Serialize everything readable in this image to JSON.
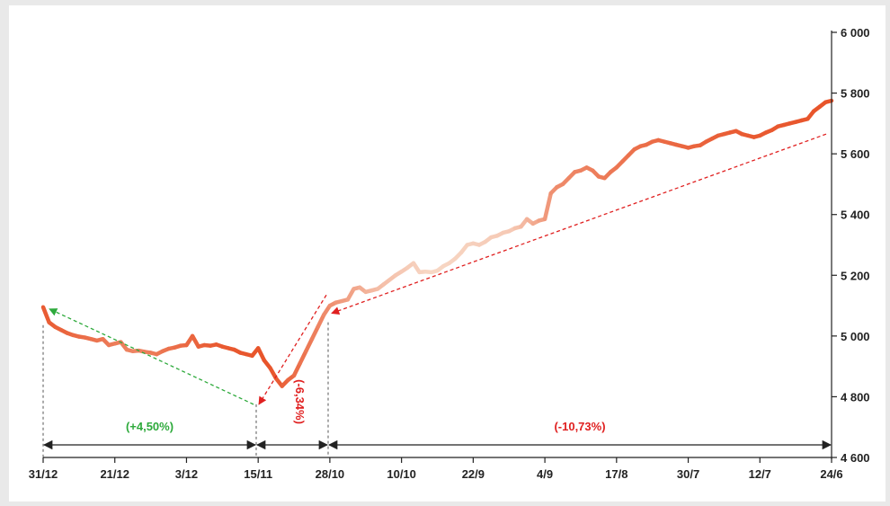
{
  "chart_data": {
    "type": "line",
    "title": "",
    "xlabel": "",
    "ylabel": "",
    "ylim": [
      4600,
      6000
    ],
    "y_ticks": [
      "4 600",
      "4 800",
      "5 000",
      "5 200",
      "5 400",
      "5 600",
      "5 800",
      "6 000"
    ],
    "x_tick_labels": [
      "31/12",
      "21/12",
      "3/12",
      "15/11",
      "28/10",
      "10/10",
      "22/9",
      "4/9",
      "17/8",
      "30/7",
      "12/7",
      "24/6"
    ],
    "y_axis_position": "right",
    "grid": false,
    "series": [
      {
        "color": "#e8542a",
        "values": [
          5095,
          5045,
          5030,
          5020,
          5010,
          5003,
          4998,
          4995,
          4990,
          4985,
          4990,
          4970,
          4975,
          4980,
          4955,
          4950,
          4952,
          4948,
          4945,
          4940,
          4950,
          4958,
          4962,
          4968,
          4970,
          5000,
          4965,
          4970,
          4968,
          4972,
          4965,
          4960,
          4955,
          4945,
          4940,
          4935,
          4960,
          4920,
          4895,
          4860,
          4835,
          4855,
          4870,
          4910,
          4950,
          4990,
          5030,
          5070,
          5100,
          5110,
          5115,
          5120,
          5155,
          5160,
          5145,
          5150,
          5155,
          5170,
          5185,
          5200,
          5212,
          5225,
          5240,
          5210,
          5212,
          5210,
          5215,
          5230,
          5240,
          5255,
          5275,
          5300,
          5305,
          5300,
          5310,
          5325,
          5330,
          5340,
          5345,
          5355,
          5360,
          5385,
          5370,
          5380,
          5385,
          5470,
          5490,
          5500,
          5520,
          5540,
          5545,
          5555,
          5545,
          5525,
          5520,
          5540,
          5555,
          5575,
          5595,
          5615,
          5625,
          5630,
          5640,
          5645,
          5640,
          5635,
          5630,
          5625,
          5620,
          5625,
          5628,
          5640,
          5650,
          5660,
          5665,
          5670,
          5675,
          5665,
          5660,
          5655,
          5660,
          5670,
          5678,
          5690,
          5695,
          5700,
          5705,
          5710,
          5715,
          5740,
          5755,
          5770,
          5775
        ]
      }
    ],
    "annotations": [
      {
        "label": "(+4,50%)",
        "color": "#2eaa3c",
        "from": "31/12",
        "to": "15/11"
      },
      {
        "label": "(-6,34%)",
        "color": "#e02020",
        "from": "15/11",
        "to": "28/10"
      },
      {
        "label": "(-10,73%)",
        "color": "#e02020",
        "from": "28/10",
        "to": "24/6"
      }
    ]
  }
}
